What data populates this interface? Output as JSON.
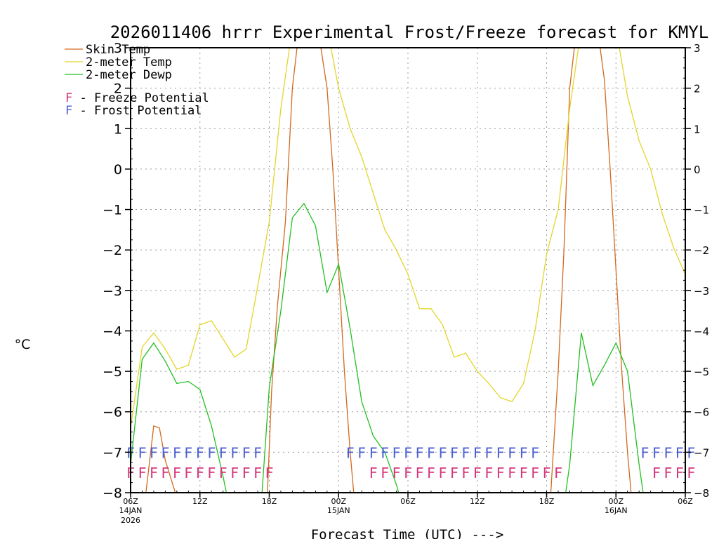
{
  "chart_data": {
    "type": "line",
    "title": "2026011406 hrrr Experimental Frost/Freeze forecast for KMYL",
    "ylabel": "°C",
    "xlabel": "Forecast Time (UTC) --->",
    "ylim": [
      -8,
      3
    ],
    "xlim": [
      0,
      48
    ],
    "y_ticks": [
      3,
      2,
      1,
      0,
      -1,
      -2,
      -3,
      -4,
      -5,
      -6,
      -7,
      -8
    ],
    "y_tick_labels_left": [
      "3",
      "2",
      "1",
      "0",
      "−1",
      "−2",
      "−3",
      "−4",
      "−5",
      "−6",
      "−7",
      "−8"
    ],
    "y_tick_labels_right": [
      "3",
      "2",
      "1",
      "0",
      "−1",
      "−2",
      "−3",
      "−4",
      "−5",
      "−6",
      "−7",
      "−8"
    ],
    "x_ticks": [
      {
        "x": 0,
        "label": "06Z",
        "sub1": "14JAN",
        "sub2": "2026"
      },
      {
        "x": 6,
        "label": "12Z",
        "sub1": "",
        "sub2": ""
      },
      {
        "x": 12,
        "label": "18Z",
        "sub1": "",
        "sub2": ""
      },
      {
        "x": 18,
        "label": "00Z",
        "sub1": "15JAN",
        "sub2": ""
      },
      {
        "x": 24,
        "label": "06Z",
        "sub1": "",
        "sub2": ""
      },
      {
        "x": 30,
        "label": "12Z",
        "sub1": "",
        "sub2": ""
      },
      {
        "x": 36,
        "label": "18Z",
        "sub1": "",
        "sub2": ""
      },
      {
        "x": 42,
        "label": "00Z",
        "sub1": "16JAN",
        "sub2": ""
      },
      {
        "x": 48,
        "label": "06Z",
        "sub1": "",
        "sub2": ""
      }
    ],
    "legend": [
      {
        "name": "Skin Temp",
        "color": "#d2691e"
      },
      {
        "name": "2-meter Temp",
        "color": "#e3d52a"
      },
      {
        "name": "2-meter Dewp",
        "color": "#22c022"
      }
    ],
    "flag_legend": [
      {
        "letter": "F",
        "text": " - Freeze Potential",
        "color": "#d6357a"
      },
      {
        "letter": "F",
        "text": " - Frost Potential",
        "color": "#4a5fd0"
      }
    ],
    "series": [
      {
        "name": "Skin Temp",
        "color": "#d2691e",
        "points": [
          [
            1.2,
            -8.3
          ],
          [
            2.0,
            -6.35
          ],
          [
            2.5,
            -6.4
          ],
          [
            3.0,
            -7.2
          ],
          [
            4.2,
            -8.3
          ],
          [
            11.8,
            -8.3
          ],
          [
            12.2,
            -5.5
          ],
          [
            12.7,
            -3.4
          ],
          [
            13.4,
            -1.3
          ],
          [
            14.0,
            2.0
          ],
          [
            14.6,
            3.5
          ],
          [
            16.2,
            3.5
          ],
          [
            17.0,
            2.0
          ],
          [
            17.5,
            0.0
          ],
          [
            18.0,
            -2.5
          ],
          [
            18.5,
            -5.0
          ],
          [
            19.0,
            -7.0
          ],
          [
            19.4,
            -8.3
          ],
          [
            36.3,
            -8.3
          ],
          [
            37.0,
            -5.0
          ],
          [
            37.5,
            -2.0
          ],
          [
            38.0,
            2.0
          ],
          [
            38.6,
            3.5
          ],
          [
            40.4,
            3.5
          ],
          [
            41.0,
            2.2
          ],
          [
            41.5,
            0.0
          ],
          [
            42.0,
            -2.5
          ],
          [
            42.5,
            -5.0
          ],
          [
            43.0,
            -7.0
          ],
          [
            43.4,
            -8.3
          ]
        ]
      },
      {
        "name": "2-meter Temp",
        "color": "#e3d52a",
        "points": [
          [
            0,
            -6.4
          ],
          [
            1,
            -4.4
          ],
          [
            2,
            -4.05
          ],
          [
            3,
            -4.45
          ],
          [
            4,
            -4.95
          ],
          [
            5,
            -4.85
          ],
          [
            6,
            -3.85
          ],
          [
            7,
            -3.75
          ],
          [
            8,
            -4.2
          ],
          [
            9,
            -4.65
          ],
          [
            10,
            -4.45
          ],
          [
            11,
            -2.9
          ],
          [
            12,
            -1.3
          ],
          [
            13,
            1.5
          ],
          [
            14,
            3.5
          ],
          [
            17,
            3.5
          ],
          [
            18,
            2.0
          ],
          [
            19,
            1.0
          ],
          [
            20,
            0.3
          ],
          [
            21,
            -0.6
          ],
          [
            22,
            -1.5
          ],
          [
            23,
            -2.0
          ],
          [
            24,
            -2.6
          ],
          [
            25,
            -3.45
          ],
          [
            26,
            -3.45
          ],
          [
            27,
            -3.85
          ],
          [
            28,
            -4.65
          ],
          [
            29,
            -4.55
          ],
          [
            30,
            -5.0
          ],
          [
            31,
            -5.3
          ],
          [
            32,
            -5.65
          ],
          [
            33,
            -5.75
          ],
          [
            34,
            -5.3
          ],
          [
            35,
            -4.0
          ],
          [
            36,
            -2.1
          ],
          [
            37,
            -1.0
          ],
          [
            38,
            1.5
          ],
          [
            39,
            3.5
          ],
          [
            42,
            3.5
          ],
          [
            43,
            1.8
          ],
          [
            44,
            0.7
          ],
          [
            45,
            0.0
          ],
          [
            46,
            -1.1
          ],
          [
            47,
            -1.95
          ],
          [
            48,
            -2.6
          ],
          [
            49,
            -3.2
          ]
        ]
      },
      {
        "name": "2-meter Dewp",
        "color": "#22c022",
        "points": [
          [
            0,
            -7.3
          ],
          [
            1,
            -4.7
          ],
          [
            2,
            -4.3
          ],
          [
            3,
            -4.75
          ],
          [
            4,
            -5.3
          ],
          [
            5,
            -5.25
          ],
          [
            6,
            -5.45
          ],
          [
            7,
            -6.35
          ],
          [
            8,
            -7.6
          ],
          [
            8.5,
            -8.3
          ],
          [
            11.3,
            -8.3
          ],
          [
            12,
            -5.4
          ],
          [
            13,
            -3.5
          ],
          [
            14,
            -1.2
          ],
          [
            15,
            -0.85
          ],
          [
            16,
            -1.4
          ],
          [
            17,
            -3.05
          ],
          [
            18,
            -2.35
          ],
          [
            19,
            -3.95
          ],
          [
            20,
            -5.75
          ],
          [
            21,
            -6.6
          ],
          [
            22,
            -7.0
          ],
          [
            23,
            -7.8
          ],
          [
            23.5,
            -8.3
          ],
          [
            37.5,
            -8.3
          ],
          [
            38,
            -7.3
          ],
          [
            39,
            -4.05
          ],
          [
            40,
            -5.35
          ],
          [
            41,
            -4.85
          ],
          [
            42,
            -4.3
          ],
          [
            43,
            -5.0
          ],
          [
            44,
            -7.3
          ],
          [
            44.5,
            -8.3
          ]
        ]
      }
    ],
    "frost_flags": [
      {
        "start": 0,
        "count": 12
      },
      {
        "start": 19,
        "count": 17
      },
      {
        "start": 44.5,
        "count": 5
      }
    ],
    "freeze_flags": [
      {
        "start": 0,
        "count": 13
      },
      {
        "start": 21,
        "count": 17
      },
      {
        "start": 45.5,
        "count": 4
      }
    ],
    "flag_letter": "F"
  }
}
